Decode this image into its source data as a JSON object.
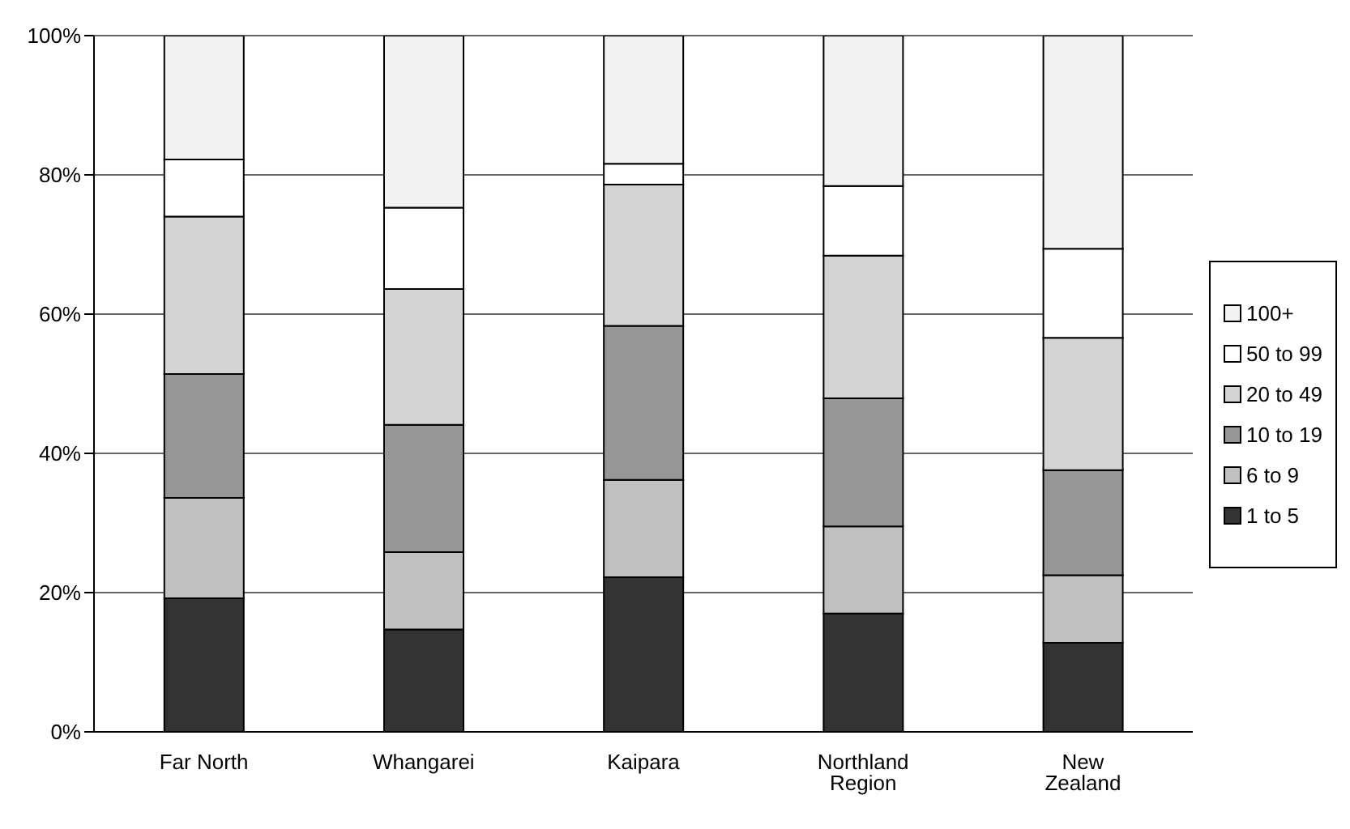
{
  "chart_data": {
    "type": "bar",
    "stacked": true,
    "categories": [
      "Far North",
      "Whangarei",
      "Kaipara",
      "Northland Region",
      "New Zealand"
    ],
    "series": [
      {
        "name": "1 to 5",
        "color": "#333333",
        "values": [
          19.2,
          14.7,
          22.2,
          17.0,
          12.8
        ]
      },
      {
        "name": "6 to 9",
        "color": "#c0c0c0",
        "values": [
          14.4,
          11.1,
          14.0,
          12.5,
          9.7
        ]
      },
      {
        "name": "10 to 19",
        "color": "#969696",
        "values": [
          17.8,
          18.3,
          22.1,
          18.4,
          15.1
        ]
      },
      {
        "name": "20 to 49",
        "color": "#d4d4d4",
        "values": [
          22.6,
          19.5,
          20.3,
          20.5,
          19.0
        ]
      },
      {
        "name": "50 to 99",
        "color": "#ffffff",
        "values": [
          8.2,
          11.7,
          3.0,
          10.0,
          12.8
        ]
      },
      {
        "name": "100+",
        "color": "#f2f2f2",
        "values": [
          17.8,
          24.7,
          18.4,
          21.6,
          30.6
        ]
      }
    ],
    "ylim": [
      0,
      100
    ],
    "yticks": [
      {
        "value": 0,
        "label": "0%"
      },
      {
        "value": 20,
        "label": "20%"
      },
      {
        "value": 40,
        "label": "40%"
      },
      {
        "value": 60,
        "label": "60%"
      },
      {
        "value": 80,
        "label": "80%"
      },
      {
        "value": 100,
        "label": "100%"
      }
    ],
    "grid": "y",
    "legend": "right"
  }
}
